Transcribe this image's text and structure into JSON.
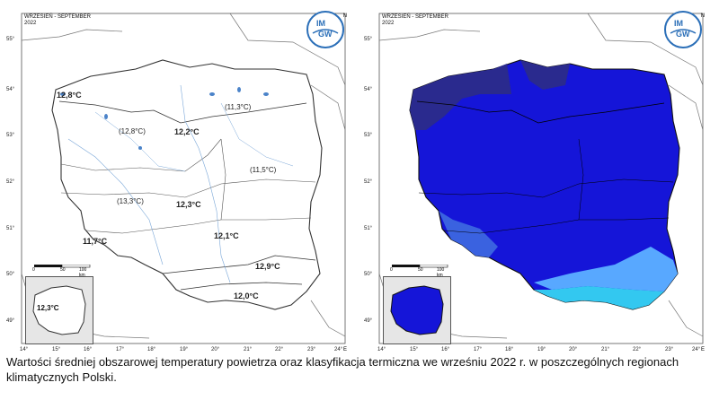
{
  "left_map": {
    "title": "WRZESIEŃ - SEPTEMBER",
    "year": "2022",
    "north": "N",
    "east": "E",
    "logo": {
      "line1": "IM",
      "line2": "GW"
    },
    "labels": [
      {
        "text": "12,8°C"
      },
      {
        "text": "(11,3°C)"
      },
      {
        "text": "(12,8°C)"
      },
      {
        "text": "12,2°C"
      },
      {
        "text": "(11,5°C)"
      },
      {
        "text": "(13,3°C)"
      },
      {
        "text": "12,3°C"
      },
      {
        "text": "12,1°C"
      },
      {
        "text": "11,7°C"
      },
      {
        "text": "12,9°C"
      },
      {
        "text": "12,0°C"
      }
    ],
    "inset_label": "12,3°C",
    "scale": {
      "start": "0",
      "mid": "50",
      "end": "100 km"
    }
  },
  "right_map": {
    "title": "WRZESIEŃ - SEPTEMBER",
    "year": "2022",
    "north": "N",
    "east": "E",
    "logo": {
      "line1": "IM",
      "line2": "GW"
    },
    "scale": {
      "start": "0",
      "mid": "50",
      "end": "100 km"
    },
    "colors": {
      "main": "#1515d8",
      "dark": "#2a2a8e",
      "medium": "#3a62e0",
      "light": "#58a8ff",
      "cyan": "#33c8f0"
    }
  },
  "axes": {
    "lat": [
      "55°",
      "54°",
      "53°",
      "52°",
      "51°",
      "50°",
      "49°"
    ],
    "lon": [
      "14°",
      "15°",
      "16°",
      "17°",
      "18°",
      "19°",
      "20°",
      "21°",
      "22°",
      "23°",
      "24°"
    ]
  },
  "caption": "Wartości średniej obszarowej temperatury powietrza oraz klasyfikacja termiczna we wrześniu 2022 r. w poszczególnych regionach klimatycznych Polski."
}
